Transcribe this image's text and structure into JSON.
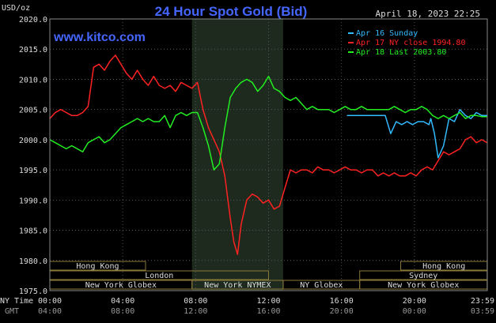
{
  "chart_data": {
    "type": "line",
    "title": "24 Hour Spot Gold (Bid)",
    "site": "www.kitco.com",
    "date_stamp": "April 18, 2023 22:25",
    "ylabel": "USD/oz",
    "ylim": [
      1975,
      2020
    ],
    "y_ticks": [
      "2020.0",
      "2015.0",
      "2010.0",
      "2005.0",
      "2000.0",
      "1995.0",
      "1990.0",
      "1985.0",
      "1980.0",
      "1975.0"
    ],
    "x_range_hours": [
      0,
      24
    ],
    "x_ticks_ny": [
      "00:00",
      "04:00",
      "08:00",
      "12:00",
      "16:00",
      "20:00",
      "23:59"
    ],
    "x_ticks_gmt": [
      "04:00",
      "08:00",
      "12:00",
      "16:00",
      "20:00",
      "00:00",
      "03:59"
    ],
    "row_label_ny": "NY Time",
    "row_label_gmt": "GMT",
    "series": [
      {
        "name": "Apr 16 Sunday",
        "color": "#33bbff",
        "x": [
          16.3,
          16.6,
          16.9,
          17.0,
          17.3,
          17.6,
          17.8,
          18.1,
          18.4,
          18.7,
          19.0,
          19.3,
          19.6,
          19.9,
          20.2,
          20.5,
          20.8,
          20.9,
          21.1,
          21.3,
          21.6,
          21.9,
          22.2,
          22.5,
          22.8,
          23.1,
          23.4,
          23.7,
          23.99
        ],
        "values": [
          2004.0,
          2004.0,
          2004.0,
          2004.0,
          2004.0,
          2004.0,
          2004.0,
          2004.0,
          2004.0,
          2001.0,
          2003.0,
          2002.5,
          2003.0,
          2002.5,
          2003.0,
          2003.0,
          2002.5,
          2003.5,
          2001.0,
          1997.0,
          1999.0,
          2003.5,
          2003.0,
          2005.0,
          2004.0,
          2003.5,
          2004.5,
          2004.0,
          2004.0
        ]
      },
      {
        "name": "Apr 17 NY close 1994.80",
        "color": "#ff2222",
        "x": [
          0,
          0.3,
          0.6,
          0.9,
          1.2,
          1.5,
          1.8,
          2.1,
          2.4,
          2.7,
          3.0,
          3.3,
          3.6,
          3.9,
          4.2,
          4.5,
          4.8,
          5.1,
          5.4,
          5.7,
          6.0,
          6.3,
          6.6,
          6.9,
          7.2,
          7.5,
          7.8,
          8.1,
          8.4,
          8.7,
          9.0,
          9.3,
          9.6,
          9.9,
          10.1,
          10.3,
          10.5,
          10.8,
          11.1,
          11.4,
          11.7,
          12.0,
          12.3,
          12.6,
          12.9,
          13.2,
          13.5,
          13.8,
          14.1,
          14.4,
          14.7,
          15.0,
          15.3,
          15.6,
          15.9,
          16.2,
          16.5,
          16.8,
          17.1,
          17.4,
          17.7,
          18.0,
          18.3,
          18.6,
          18.9,
          19.2,
          19.5,
          19.8,
          20.1,
          20.4,
          20.7,
          21.0,
          21.3,
          21.6,
          21.9,
          22.2,
          22.5,
          22.8,
          23.1,
          23.4,
          23.7,
          23.99
        ],
        "values": [
          2003.5,
          2004.5,
          2005.0,
          2004.5,
          2004.0,
          2004.0,
          2004.5,
          2005.5,
          2012.0,
          2012.5,
          2011.5,
          2013.0,
          2014.0,
          2012.5,
          2011.0,
          2010.0,
          2011.5,
          2010.0,
          2009.0,
          2010.5,
          2009.0,
          2008.5,
          2009.0,
          2008.0,
          2009.5,
          2009.0,
          2008.5,
          2009.5,
          2005.0,
          2002.0,
          2000.0,
          1998.0,
          1994.0,
          1987.0,
          1983.0,
          1981.0,
          1986.0,
          1990.0,
          1991.0,
          1990.5,
          1989.5,
          1990.0,
          1988.5,
          1989.0,
          1992.0,
          1995.0,
          1994.5,
          1995.0,
          1995.0,
          1994.5,
          1995.5,
          1995.0,
          1995.0,
          1994.5,
          1995.0,
          1995.5,
          1995.0,
          1995.0,
          1994.5,
          1995.0,
          1995.0,
          1994.0,
          1994.5,
          1994.0,
          1994.5,
          1994.0,
          1994.0,
          1994.5,
          1994.0,
          1995.0,
          1995.5,
          1995.0,
          1996.5,
          1998.0,
          1997.5,
          1998.0,
          1998.5,
          2000.0,
          2000.5,
          1999.5,
          2000.0,
          1999.5
        ]
      },
      {
        "name": "Apr 18 Last 2003.80",
        "color": "#22ee22",
        "x": [
          0,
          0.3,
          0.6,
          0.9,
          1.2,
          1.5,
          1.8,
          2.1,
          2.4,
          2.7,
          3.0,
          3.3,
          3.6,
          3.9,
          4.2,
          4.5,
          4.8,
          5.1,
          5.4,
          5.7,
          6.0,
          6.3,
          6.6,
          6.9,
          7.2,
          7.5,
          7.8,
          8.1,
          8.4,
          8.7,
          9.0,
          9.3,
          9.6,
          9.9,
          10.2,
          10.5,
          10.8,
          11.1,
          11.4,
          11.7,
          12.0,
          12.3,
          12.6,
          12.9,
          13.2,
          13.5,
          13.8,
          14.1,
          14.4,
          14.7,
          15.0,
          15.3,
          15.6,
          15.9,
          16.2,
          16.5,
          16.8,
          17.1,
          17.4,
          17.7,
          18.0,
          18.3,
          18.6,
          18.9,
          19.2,
          19.5,
          19.8,
          20.1,
          20.4,
          20.7,
          21.0,
          21.3,
          21.6,
          21.9,
          22.2,
          22.5,
          22.8,
          23.1,
          23.4,
          23.7,
          23.99
        ],
        "values": [
          2000.0,
          1999.5,
          1999.0,
          1998.5,
          1999.0,
          1998.5,
          1998.0,
          1999.5,
          2000.0,
          2000.5,
          1999.5,
          2000.0,
          2001.0,
          2002.0,
          2002.5,
          2003.0,
          2003.5,
          2003.0,
          2003.5,
          2003.0,
          2003.0,
          2004.0,
          2002.0,
          2004.0,
          2004.5,
          2004.0,
          2004.5,
          2004.5,
          2002.0,
          1999.0,
          1995.0,
          1996.0,
          2002.0,
          2007.0,
          2008.5,
          2009.5,
          2010.0,
          2009.5,
          2008.0,
          2009.0,
          2010.5,
          2008.5,
          2008.0,
          2007.0,
          2006.5,
          2007.0,
          2006.0,
          2005.0,
          2005.5,
          2005.0,
          2005.0,
          2005.0,
          2004.5,
          2005.0,
          2005.5,
          2005.0,
          2005.0,
          2005.5,
          2005.0,
          2005.0,
          2005.0,
          2005.0,
          2005.0,
          2005.5,
          2005.0,
          2004.5,
          2005.0,
          2005.0,
          2005.5,
          2005.0,
          2004.0,
          2003.5,
          2004.0,
          2003.5,
          2004.0,
          2004.5,
          2003.5,
          2004.0,
          2004.0,
          2003.8,
          2003.8
        ]
      }
    ],
    "market_sessions": [
      {
        "name": "Hong Kong",
        "row": 0,
        "start": 0.0,
        "end": 5.25
      },
      {
        "name": "Hong Kong",
        "row": 0,
        "start": 19.25,
        "end": 23.99
      },
      {
        "name": "London",
        "row": 1,
        "start": 0.0,
        "end": 12.0
      },
      {
        "name": "Sydney",
        "row": 1,
        "start": 17.0,
        "end": 23.99
      },
      {
        "name": "New York Globex",
        "row": 2,
        "start": 0.0,
        "end": 7.8
      },
      {
        "name": "New York NYMEX",
        "row": 2,
        "start": 7.8,
        "end": 12.8
      },
      {
        "name": "NY Globex",
        "row": 2,
        "start": 12.8,
        "end": 17.0
      },
      {
        "name": "New York Globex",
        "row": 2,
        "start": 17.0,
        "end": 23.99
      }
    ],
    "shaded_region_hours": [
      7.8,
      12.8
    ],
    "grid": true,
    "legend": "top-right"
  }
}
